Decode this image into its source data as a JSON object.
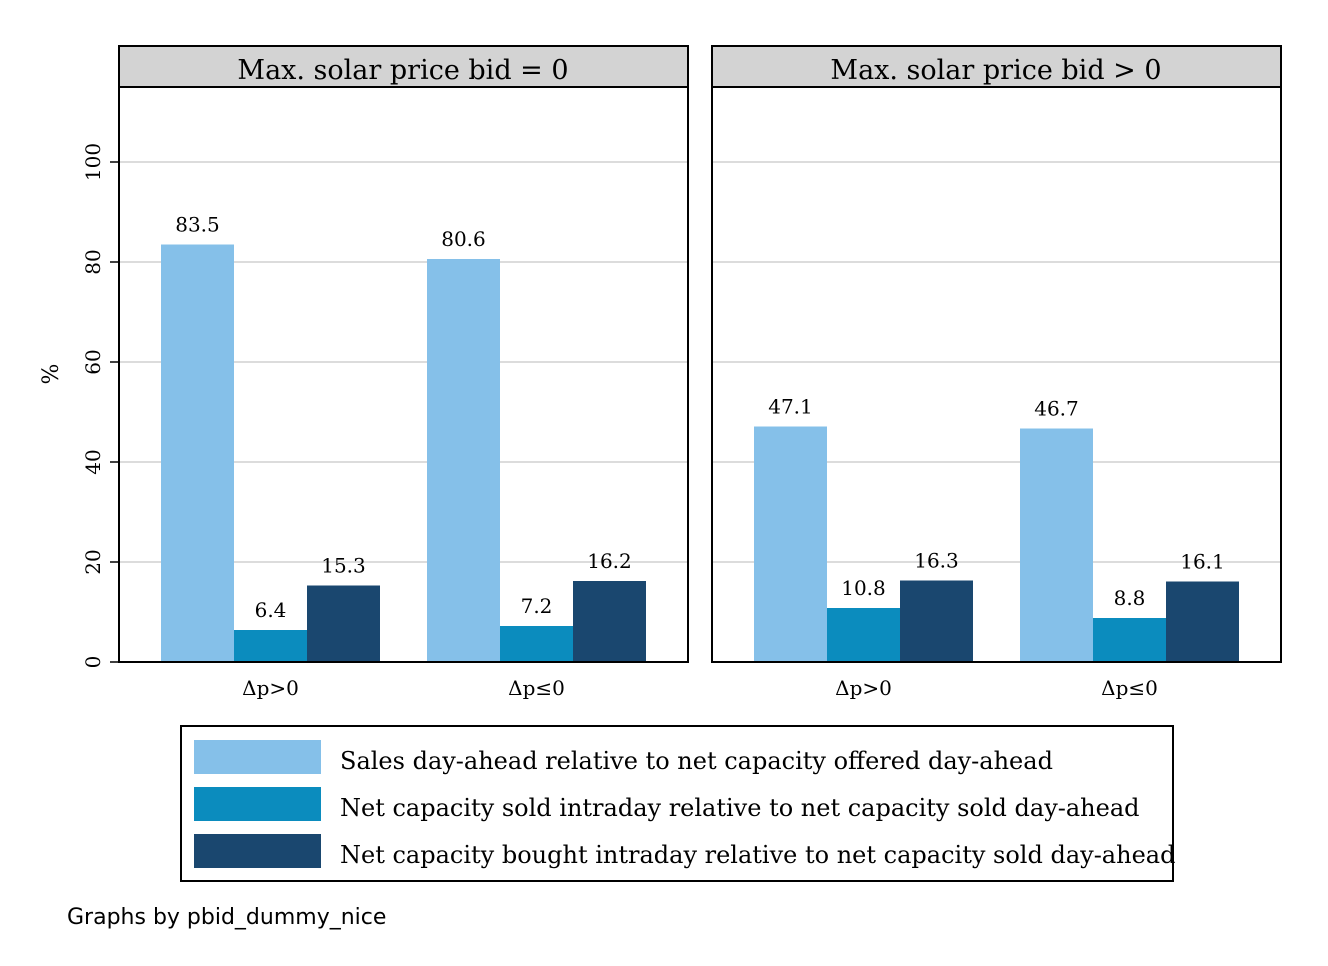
{
  "chart_data": {
    "type": "bar",
    "ylabel": "%",
    "ylim": [
      0,
      115
    ],
    "yticks": [
      0,
      20,
      40,
      60,
      80,
      100
    ],
    "grid": true,
    "legend_position": "bottom",
    "footnote": "Graphs by pbid_dummy_nice",
    "colors": [
      "#85c0e9",
      "#0b8cbe",
      "#1a476f"
    ],
    "series_names": [
      "Sales day-ahead relative to net capacity offered day-ahead",
      "Net capacity sold intraday relative to net capacity sold day-ahead",
      "Net capacity bought intraday relative to net capacity sold day-ahead"
    ],
    "panels": [
      {
        "title": "Max. solar price bid = 0",
        "categories": [
          "Δp>0",
          "Δp≤0"
        ],
        "series": [
          {
            "name": "Sales day-ahead relative to net capacity offered day-ahead",
            "values": [
              83.5,
              80.6
            ]
          },
          {
            "name": "Net capacity sold intraday relative to net capacity sold day-ahead",
            "values": [
              6.4,
              7.2
            ]
          },
          {
            "name": "Net capacity bought intraday relative to net capacity sold day-ahead",
            "values": [
              15.3,
              16.2
            ]
          }
        ]
      },
      {
        "title": "Max. solar price bid > 0",
        "categories": [
          "Δp>0",
          "Δp≤0"
        ],
        "series": [
          {
            "name": "Sales day-ahead relative to net capacity offered day-ahead",
            "values": [
              47.1,
              46.7
            ]
          },
          {
            "name": "Net capacity sold intraday relative to net capacity sold day-ahead",
            "values": [
              10.8,
              8.8
            ]
          },
          {
            "name": "Net capacity bought intraday relative to net capacity sold day-ahead",
            "values": [
              16.3,
              16.1
            ]
          }
        ]
      }
    ]
  }
}
